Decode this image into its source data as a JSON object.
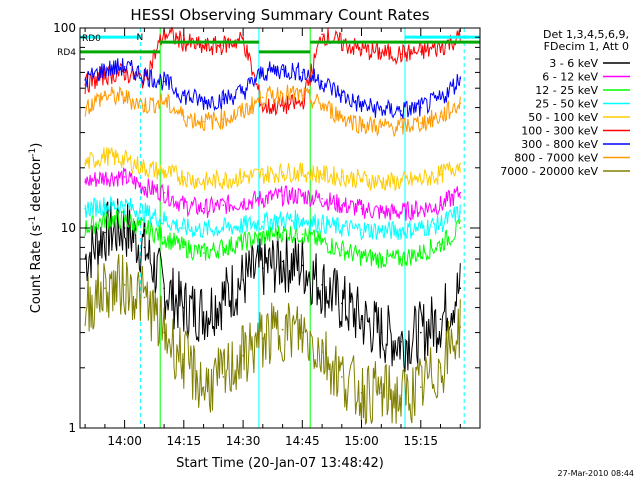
{
  "chart_data": {
    "type": "line",
    "title": "HESSI Observing Summary Count Rates",
    "xlabel": "Start Time (20-Jan-07 13:48:42)",
    "ylabel": "Count Rate (s",
    "ylabel_sup": "-1",
    "ylabel_tail": " detector",
    "ylabel_end": ")",
    "y_scale": "log",
    "ylim": [
      1,
      100
    ],
    "xlim": [
      "13:48:42",
      "15:30:00"
    ],
    "y_ticks": [
      1,
      10,
      100
    ],
    "y_tick_labels": [
      "1",
      "10",
      "100"
    ],
    "x_ticks": [
      "14:00",
      "14:15",
      "14:30",
      "14:45",
      "15:00",
      "15:15"
    ],
    "x_tick_labels": [
      "14:00",
      "14:15",
      "14:30",
      "14:45",
      "15:00",
      "15:15"
    ],
    "timestamp": "27-Mar-2010 08:44",
    "legend_header": [
      "Det 1,3,4,5,6,9,",
      "FDecim 1, Att 0"
    ],
    "legend_position": "right",
    "flags": [
      {
        "label": "RD0",
        "color": "#00ffff",
        "level": 90
      },
      {
        "label": "RD4",
        "color": "#00aa00",
        "level": 76
      }
    ],
    "night_marker": {
      "label": "N",
      "color": "#00ffff"
    },
    "saa_flag": {
      "color": "#00aa00",
      "level": 85
    },
    "vertical_lines": [
      {
        "time": "13:48:42",
        "color": "#00ffff",
        "style": "solid"
      },
      {
        "time": "14:04:00",
        "color": "#00ffff",
        "style": "dashed"
      },
      {
        "time": "14:09:00",
        "color": "#00ff00",
        "style": "solid"
      },
      {
        "time": "14:34:00",
        "color": "#00ffff",
        "style": "solid"
      },
      {
        "time": "14:47:00",
        "color": "#00ff00",
        "style": "solid"
      },
      {
        "time": "15:11:00",
        "color": "#00ffff",
        "style": "solid"
      },
      {
        "time": "15:26:00",
        "color": "#00ffff",
        "style": "dashed"
      }
    ],
    "series": [
      {
        "name": "3 - 6 keV",
        "color": "#000000",
        "x": [
          "13:50",
          "13:55",
          "14:00",
          "14:05",
          "14:10",
          "14:15",
          "14:20",
          "14:25",
          "14:30",
          "14:35",
          "14:40",
          "14:45",
          "14:50",
          "14:55",
          "15:00",
          "15:05",
          "15:10",
          "15:15",
          "15:20",
          "15:25"
        ],
        "y": [
          7,
          9.5,
          10,
          8,
          5,
          4,
          3.8,
          4.5,
          5.5,
          6.3,
          6.8,
          6.5,
          5.2,
          4.2,
          3.5,
          3,
          2.7,
          3,
          3.5,
          5
        ]
      },
      {
        "name": "6 - 12 keV",
        "color": "#ff00ff",
        "x": [
          "13:50",
          "13:55",
          "14:00",
          "14:05",
          "14:10",
          "14:15",
          "14:20",
          "14:25",
          "14:30",
          "14:35",
          "14:40",
          "14:45",
          "14:50",
          "14:55",
          "15:00",
          "15:05",
          "15:10",
          "15:15",
          "15:20",
          "15:25"
        ],
        "y": [
          17,
          18,
          18,
          16,
          15,
          13,
          12.5,
          13,
          13.5,
          14,
          14.5,
          14.5,
          14,
          13,
          12.5,
          12,
          12,
          12.5,
          13,
          15
        ]
      },
      {
        "name": "12 - 25 keV",
        "color": "#00ff00",
        "x": [
          "13:50",
          "13:55",
          "14:00",
          "14:05",
          "14:10",
          "14:15",
          "14:20",
          "14:25",
          "14:30",
          "14:35",
          "14:40",
          "14:45",
          "14:50",
          "14:55",
          "15:00",
          "15:05",
          "15:10",
          "15:15",
          "15:20",
          "15:25"
        ],
        "y": [
          10,
          11,
          11,
          10,
          9,
          8,
          7.5,
          8,
          8.5,
          9,
          9.5,
          9.3,
          8.5,
          7.8,
          7.2,
          7,
          7,
          7.5,
          8.3,
          10
        ]
      },
      {
        "name": "25 - 50 keV",
        "color": "#00ffff",
        "x": [
          "13:50",
          "13:55",
          "14:00",
          "14:05",
          "14:10",
          "14:15",
          "14:20",
          "14:25",
          "14:30",
          "14:35",
          "14:40",
          "14:45",
          "14:50",
          "14:55",
          "15:00",
          "15:05",
          "15:10",
          "15:15",
          "15:20",
          "15:25"
        ],
        "y": [
          12.5,
          13,
          13,
          12,
          11,
          10,
          9.8,
          10,
          10.3,
          10.7,
          11,
          11,
          10.5,
          10,
          9.8,
          9.7,
          9.7,
          10,
          10.5,
          12
        ]
      },
      {
        "name": "50 - 100 keV",
        "color": "#ffcc00",
        "x": [
          "13:50",
          "13:55",
          "14:00",
          "14:05",
          "14:10",
          "14:15",
          "14:20",
          "14:25",
          "14:30",
          "14:35",
          "14:40",
          "14:45",
          "14:50",
          "14:55",
          "15:00",
          "15:05",
          "15:10",
          "15:15",
          "15:20",
          "15:25"
        ],
        "y": [
          21,
          23,
          22,
          20,
          19,
          18,
          17,
          17.5,
          18,
          18.5,
          19,
          19,
          18.5,
          18,
          17.5,
          17,
          17,
          17.5,
          18.5,
          21
        ]
      },
      {
        "name": "100 - 300 keV",
        "color": "#ff0000",
        "x": [
          "13:50",
          "13:55",
          "14:00",
          "14:05",
          "14:10",
          "14:15",
          "14:20",
          "14:25",
          "14:30",
          "14:35",
          "14:40",
          "14:45",
          "14:50",
          "14:55",
          "15:00",
          "15:05",
          "15:10",
          "15:15",
          "15:20",
          "15:25"
        ],
        "y": [
          52,
          58,
          60,
          55,
          95,
          85,
          80,
          82,
          88,
          40,
          41,
          42,
          93,
          84,
          78,
          75,
          74,
          76,
          80,
          90
        ]
      },
      {
        "name": "300 - 800 keV",
        "color": "#0000ff",
        "x": [
          "13:50",
          "13:55",
          "14:00",
          "14:05",
          "14:10",
          "14:15",
          "14:20",
          "14:25",
          "14:30",
          "14:35",
          "14:40",
          "14:45",
          "14:50",
          "14:55",
          "15:00",
          "15:05",
          "15:10",
          "15:15",
          "15:20",
          "15:25"
        ],
        "y": [
          55,
          62,
          64,
          58,
          54,
          46,
          43,
          44,
          48,
          60,
          62,
          60,
          54,
          46,
          41,
          39,
          38.5,
          40,
          44,
          56
        ]
      },
      {
        "name": "800 - 7000 keV",
        "color": "#ff9900",
        "x": [
          "13:50",
          "13:55",
          "14:00",
          "14:05",
          "14:10",
          "14:15",
          "14:20",
          "14:25",
          "14:30",
          "14:35",
          "14:40",
          "14:45",
          "14:50",
          "14:55",
          "15:00",
          "15:05",
          "15:10",
          "15:15",
          "15:20",
          "15:25"
        ],
        "y": [
          40,
          46,
          45,
          41,
          43,
          36,
          34,
          35,
          38,
          45,
          47,
          46,
          41,
          36,
          33,
          32,
          32,
          33.5,
          36,
          42
        ]
      },
      {
        "name": "7000 - 20000 keV",
        "color": "#808000",
        "x": [
          "13:50",
          "13:55",
          "14:00",
          "14:05",
          "14:10",
          "14:15",
          "14:20",
          "14:25",
          "14:30",
          "14:35",
          "14:40",
          "14:45",
          "14:50",
          "14:55",
          "15:00",
          "15:05",
          "15:10",
          "15:15",
          "15:20",
          "15:25"
        ],
        "y": [
          4,
          5,
          5.2,
          4.5,
          3,
          2.2,
          1.6,
          1.8,
          2.3,
          2.8,
          3.1,
          3,
          2.4,
          1.8,
          1.5,
          1.5,
          1.4,
          1.6,
          2,
          3.2
        ]
      }
    ]
  }
}
